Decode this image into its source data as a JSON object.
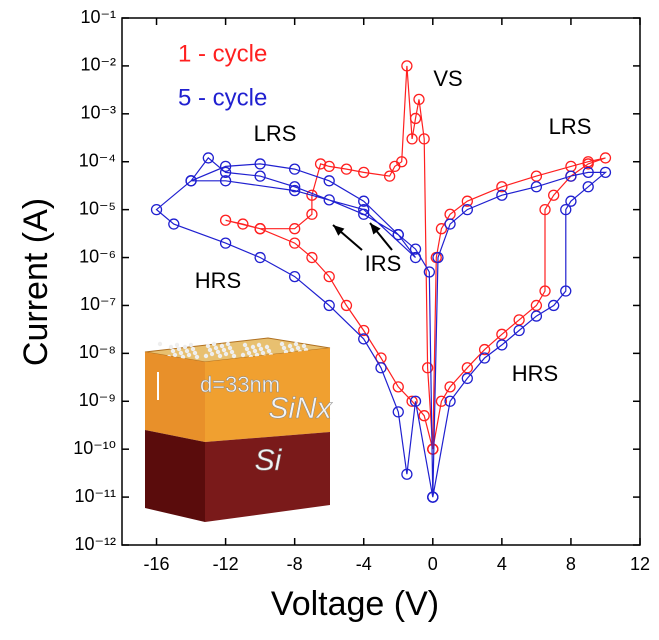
{
  "chart_data": {
    "type": "scatter-line",
    "log_y": true,
    "x_label": "Voltage (V)",
    "y_label": "Current (A)",
    "xlim": [
      -18,
      12
    ],
    "xticks": [
      -16,
      -12,
      -8,
      -4,
      0,
      4,
      8,
      12
    ],
    "ylim": [
      1e-12,
      0.1
    ],
    "yticks": [
      {
        "value": 0.1,
        "label": "10⁻¹"
      },
      {
        "value": 0.01,
        "label": "10⁻²"
      },
      {
        "value": 0.001,
        "label": "10⁻³"
      },
      {
        "value": 0.0001,
        "label": "10⁻⁴"
      },
      {
        "value": 1e-05,
        "label": "10⁻⁵"
      },
      {
        "value": 1e-06,
        "label": "10⁻⁶"
      },
      {
        "value": 1e-07,
        "label": "10⁻⁷"
      },
      {
        "value": 1e-08,
        "label": "10⁻⁸"
      },
      {
        "value": 1e-09,
        "label": "10⁻⁹"
      },
      {
        "value": 1e-10,
        "label": "10⁻¹⁰"
      },
      {
        "value": 1e-11,
        "label": "10⁻¹¹"
      },
      {
        "value": 1e-12,
        "label": "10⁻¹²"
      }
    ],
    "series": [
      {
        "name": "1 - cycle",
        "color": "#ff2020",
        "x": [
          0,
          0.5,
          1,
          2,
          3,
          4,
          5,
          6,
          6.5,
          6.5,
          7,
          8,
          9,
          10,
          9,
          8,
          6,
          4,
          2,
          1,
          0.5,
          0.2,
          0,
          -0.3,
          -0.5,
          -0.8,
          -1,
          -1.2,
          -1.5,
          -1.8,
          -2.2,
          -2.5,
          -4,
          -5,
          -6,
          -6.5,
          -7,
          -7,
          -8,
          -10,
          -11,
          -12,
          -10,
          -8,
          -7,
          -6,
          -5,
          -4,
          -3,
          -2,
          -1.2,
          -0.5,
          0
        ],
        "y": [
          1e-10,
          1e-09,
          2e-09,
          5e-09,
          1.2e-08,
          2.5e-08,
          5e-08,
          1e-07,
          2e-07,
          1e-05,
          2e-05,
          5e-05,
          9e-05,
          0.00012,
          0.0001,
          8e-05,
          5e-05,
          3e-05,
          1.5e-05,
          8e-06,
          4e-06,
          1e-06,
          1e-10,
          5e-09,
          0.0003,
          0.002,
          0.0008,
          0.0003,
          0.01,
          0.0001,
          8e-05,
          5e-05,
          6e-05,
          7e-05,
          8e-05,
          9e-05,
          2e-05,
          8e-06,
          4e-06,
          4e-06,
          5e-06,
          6e-06,
          4e-06,
          2e-06,
          1e-06,
          4e-07,
          1e-07,
          3e-08,
          8e-09,
          2e-09,
          1e-09,
          5e-10,
          1e-10
        ]
      },
      {
        "name": "5 - cycle",
        "color": "#2020d0",
        "x": [
          0,
          1,
          2,
          3,
          4,
          5,
          6,
          7,
          7.7,
          7.7,
          8,
          9,
          10,
          9,
          8,
          6,
          4,
          2,
          1,
          0.3,
          0,
          -0.2,
          -1,
          -2,
          -4,
          -6,
          -8,
          -10,
          -12,
          -13,
          -14,
          -12,
          -10,
          -8,
          -6,
          -4,
          -2,
          -1,
          -4,
          -8,
          -12,
          -14,
          -16,
          -15,
          -12,
          -10,
          -8,
          -6,
          -4,
          -3,
          -2,
          -1.5,
          -1,
          0
        ],
        "y": [
          1e-11,
          1e-09,
          3e-09,
          8e-09,
          1.5e-08,
          3e-08,
          6e-08,
          1e-07,
          2e-07,
          1e-05,
          1.5e-05,
          3e-05,
          6e-05,
          6e-05,
          5e-05,
          3e-05,
          2e-05,
          1e-05,
          5e-06,
          1e-06,
          1e-11,
          5e-07,
          1.5e-06,
          3e-06,
          8e-06,
          1.6e-05,
          3e-05,
          5e-05,
          6e-05,
          0.00012,
          4e-05,
          8e-05,
          9e-05,
          7e-05,
          4e-05,
          1.5e-05,
          3e-06,
          1e-06,
          1e-05,
          2.5e-05,
          4e-05,
          4e-05,
          1e-05,
          5e-06,
          2e-06,
          1e-06,
          4e-07,
          1e-07,
          2e-08,
          5e-09,
          6e-10,
          3e-11,
          1e-09,
          1e-11
        ]
      }
    ],
    "annotations": [
      "VS",
      "LRS",
      "LRS",
      "HRS",
      "HRS",
      "IRS"
    ],
    "inset_labels": [
      "d=33nm",
      "SiNx",
      "Si"
    ]
  }
}
